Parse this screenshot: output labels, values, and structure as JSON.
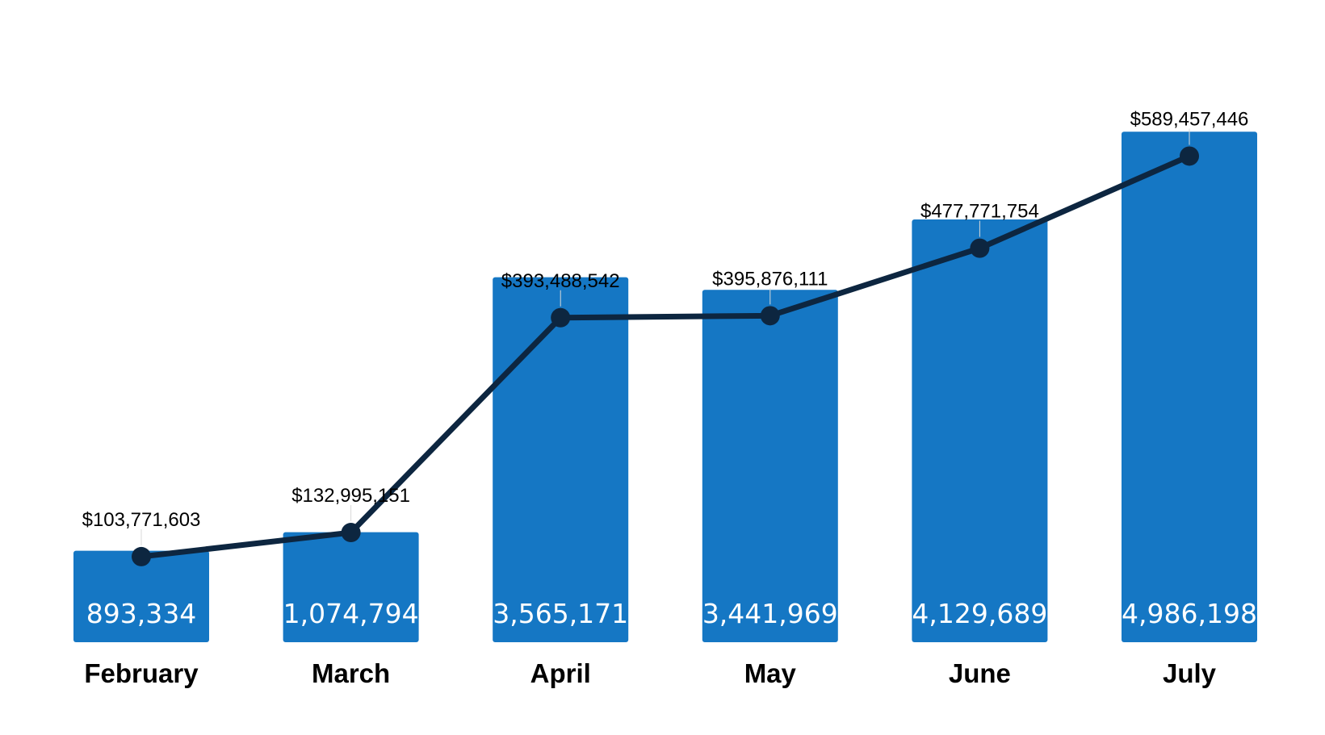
{
  "chart_data": {
    "type": "bar",
    "combo": "bar-with-line",
    "categories": [
      "February",
      "March",
      "April",
      "May",
      "June",
      "July"
    ],
    "series": [
      {
        "type": "bar",
        "values": [
          893334,
          1074794,
          3565171,
          3441969,
          4129689,
          4986198
        ],
        "labels": [
          "893,334",
          "1,074,794",
          "3,565,171",
          "3,441,969",
          "4,129,689",
          "4,986,198"
        ],
        "color": "#1577C4"
      },
      {
        "type": "line",
        "values": [
          103771603,
          132995151,
          393488542,
          395876111,
          477771754,
          589457446
        ],
        "labels": [
          "$103,771,603",
          "$132,995,151",
          "$393,488,542",
          "$395,876,111",
          "$477,771,754",
          "$589,457,446"
        ],
        "color": "#0D2640"
      }
    ],
    "bar_ylim": [
      0,
      5800000
    ],
    "line_ylim": [
      0,
      720000000
    ],
    "grid": false,
    "legend": "none",
    "title": "",
    "xlabel": "",
    "ylabel": ""
  }
}
